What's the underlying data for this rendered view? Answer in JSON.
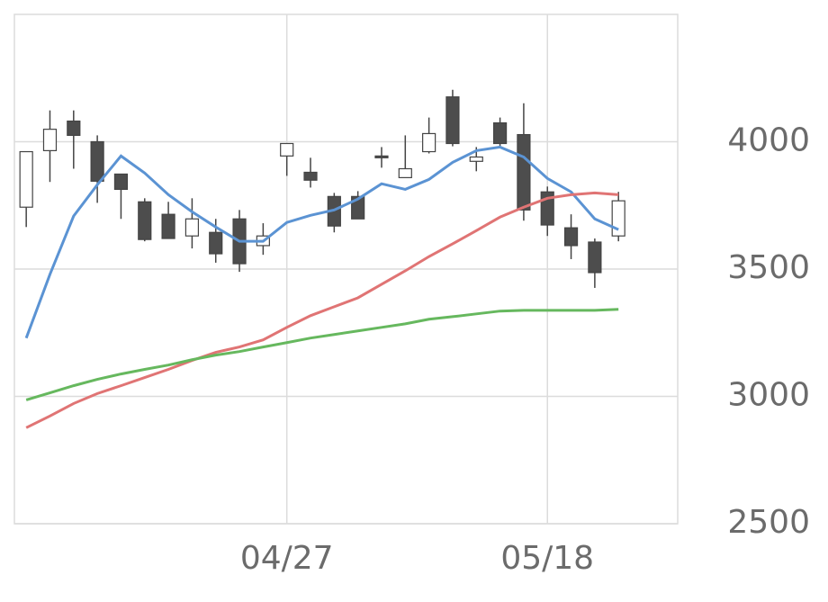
{
  "chart_data": {
    "type": "candlestick",
    "categories": [
      null,
      null,
      null,
      null,
      null,
      null,
      null,
      null,
      null,
      null,
      null,
      "04/27",
      null,
      null,
      null,
      null,
      null,
      null,
      null,
      null,
      null,
      null,
      "05/18",
      null,
      null,
      null
    ],
    "open": [
      3743,
      3965,
      4081,
      4000,
      3873,
      3764,
      3715,
      3630,
      3644,
      3697,
      3592,
      3944,
      3880,
      3785,
      3785,
      3944,
      3859,
      3961,
      4176,
      3923,
      4074,
      4028,
      3803,
      3662,
      3606,
      3630
    ],
    "high": [
      3961,
      4123,
      4123,
      4025,
      3873,
      3778,
      3764,
      3778,
      3697,
      3732,
      3680,
      3993,
      3937,
      3799,
      3806,
      3979,
      4025,
      4095,
      4204,
      3979,
      4095,
      4151,
      3824,
      3715,
      3620,
      3803
    ],
    "low": [
      3665,
      3842,
      3894,
      3760,
      3697,
      3609,
      3620,
      3581,
      3525,
      3489,
      3556,
      3866,
      3820,
      3644,
      3697,
      3898,
      3859,
      3954,
      3982,
      3884,
      3982,
      3690,
      3630,
      3539,
      3426,
      3609
    ],
    "close": [
      3961,
      4049,
      4025,
      3845,
      3813,
      3616,
      3620,
      3697,
      3560,
      3521,
      3630,
      3993,
      3849,
      3669,
      3697,
      3937,
      3894,
      4032,
      3993,
      3940,
      3993,
      3732,
      3673,
      3592,
      3486,
      3768
    ],
    "up_color": "#ffffff",
    "down_color": "#4d4d4d",
    "series": [
      {
        "color": "#5b93d3",
        "values": [
          3229,
          3479,
          3708,
          3831,
          3944,
          3877,
          3792,
          3725,
          3665,
          3609,
          3609,
          3683,
          3711,
          3732,
          3775,
          3835,
          3813,
          3852,
          3919,
          3965,
          3979,
          3940,
          3856,
          3803,
          3697,
          3655
        ]
      },
      {
        "color": "#e07474",
        "values": [
          2877,
          2923,
          2972,
          3011,
          3042,
          3074,
          3106,
          3141,
          3173,
          3194,
          3222,
          3271,
          3317,
          3352,
          3387,
          3440,
          3493,
          3549,
          3599,
          3651,
          3704,
          3743,
          3778,
          3792,
          3799,
          3792
        ]
      },
      {
        "color": "#66b85e",
        "values": [
          2986,
          3014,
          3042,
          3067,
          3088,
          3106,
          3123,
          3144,
          3162,
          3176,
          3194,
          3211,
          3229,
          3243,
          3257,
          3271,
          3285,
          3303,
          3313,
          3324,
          3335,
          3338,
          3338,
          3338,
          3338,
          3342
        ]
      }
    ],
    "ylim": [
      2500,
      4500
    ],
    "yticks": [
      2500,
      3000,
      3500,
      4000
    ],
    "grid": true
  }
}
